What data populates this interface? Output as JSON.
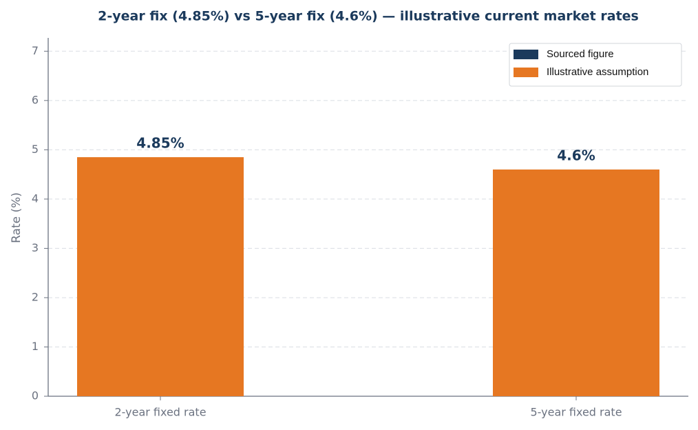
{
  "chart_data": {
    "type": "bar",
    "title": "2-year fix (4.85%) vs 5-year fix (4.6%) — illustrative current market rates",
    "y_label": "Rate (%)",
    "categories": [
      "2-year fixed rate",
      "5-year fixed rate"
    ],
    "series": [
      {
        "name": "Sourced figure",
        "color": "#1b3a5c",
        "values": [
          null,
          null
        ]
      },
      {
        "name": "Illustrative assumption",
        "color": "#e67722",
        "values": [
          4.85,
          4.6
        ],
        "value_labels": [
          "4.85%",
          "4.6%"
        ]
      }
    ],
    "ylim": [
      0,
      7.27
    ],
    "yticks": [
      0,
      1,
      2,
      3,
      4,
      5,
      6,
      7
    ],
    "grid": true,
    "legend": "upper right"
  }
}
